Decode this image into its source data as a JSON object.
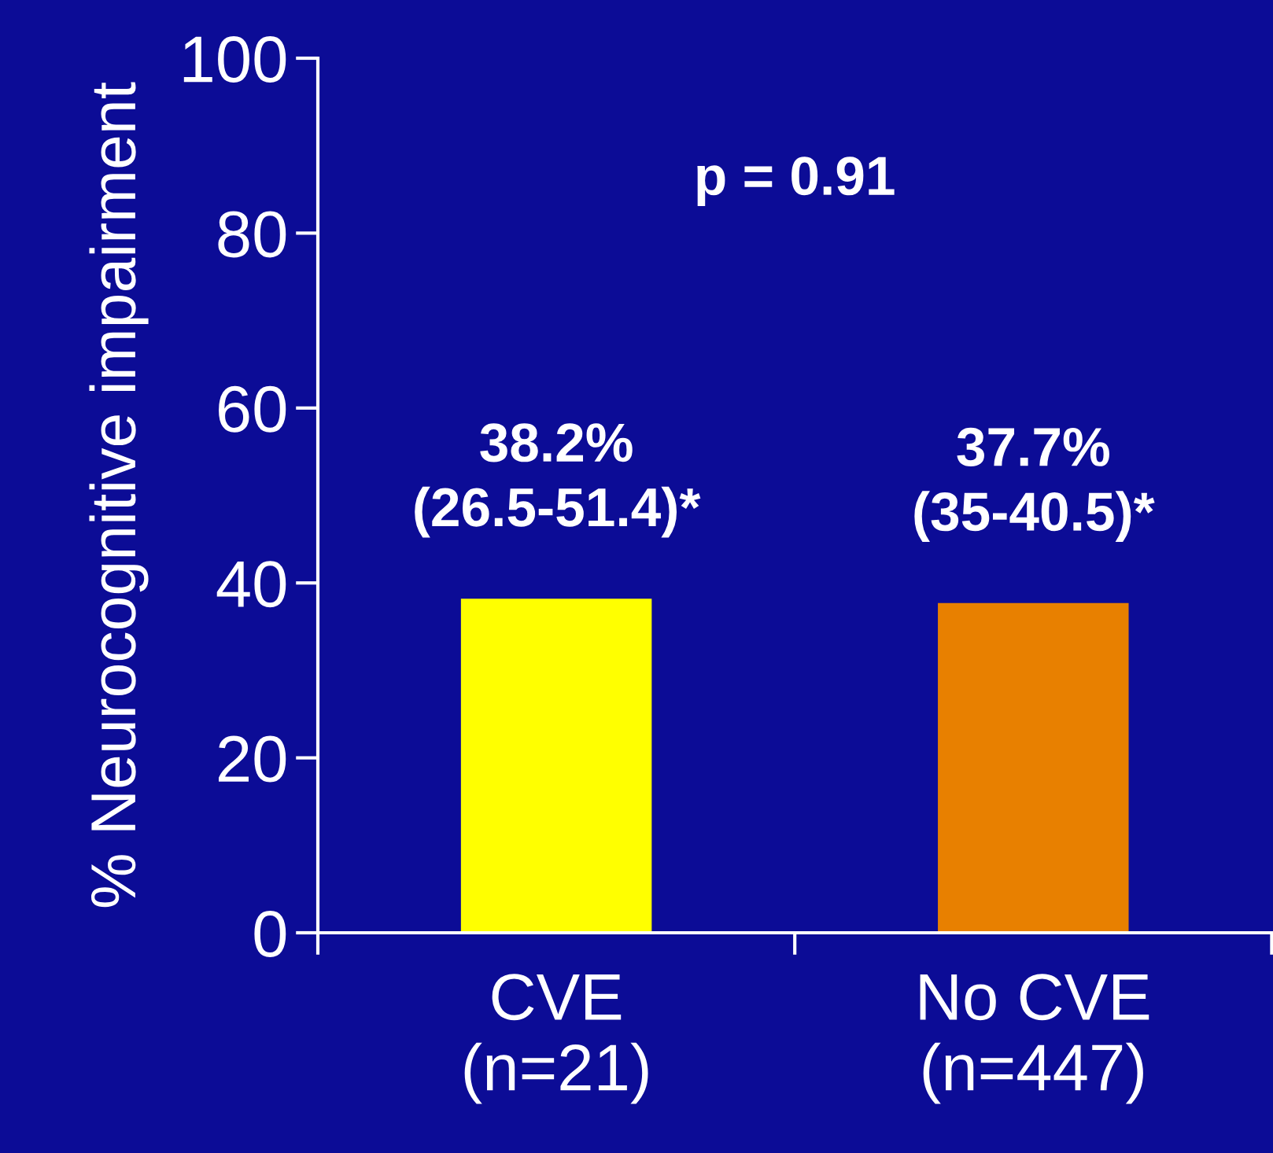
{
  "chart_data": {
    "type": "bar",
    "ylabel": "% Neurocognitive impairment",
    "categories": [
      "CVE\n(n=21)",
      "No CVE\n(n=447)"
    ],
    "values": [
      38.2,
      37.7
    ],
    "colors": [
      "#ffff00",
      "#e88000"
    ],
    "value_labels": [
      "38.2%\n(26.5-51.4)*",
      "37.7%\n(35-40.5)*"
    ],
    "annotations": [
      "p = 0.91"
    ],
    "ylim": [
      0,
      100
    ],
    "yticks": [
      0,
      20,
      40,
      60,
      80,
      100
    ],
    "grid": false,
    "legend": false
  }
}
